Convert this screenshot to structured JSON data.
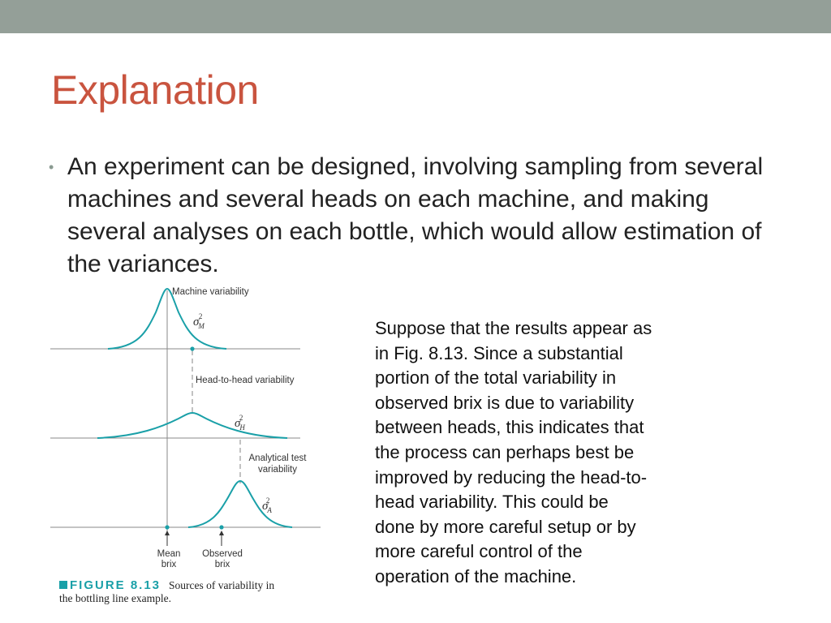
{
  "slide": {
    "title": "Explanation",
    "bullet": "An experiment can be designed, involving sampling from several machines and several heads on each machine, and making several analyses on each bottle, which would allow estimation of the variances.",
    "side_text_lines": [
      "Suppose that the results appear as",
      "in Fig. 8.13. Since a substantial",
      "portion of the total variability in",
      "observed brix is due to variability",
      "between heads, this indicates that",
      "the process can perhaps best be",
      "improved by reducing the head-to-",
      "head variability. This could be",
      "done by more careful setup or by",
      "more careful control of the",
      "operation of the machine."
    ]
  },
  "figure": {
    "labels": {
      "machine": "Machine variability",
      "sigma_m": "σ",
      "sigma_m_sub": "M",
      "head": "Head-to-head variability",
      "sigma_h": "σ",
      "sigma_h_sub": "H",
      "analytical_1": "Analytical test",
      "analytical_2": "variability",
      "sigma_a": "σ",
      "sigma_a_sub": "A",
      "sup": "2",
      "mean_1": "Mean",
      "mean_2": "brix",
      "observed_1": "Observed",
      "observed_2": "brix"
    },
    "caption_label": "FIGURE 8.13",
    "caption_text_1": "Sources of variability in",
    "caption_text_2": "the bottling line example.",
    "colors": {
      "curve": "#1aa0a8",
      "title": "#c9543f",
      "top_bar": "#949f98"
    }
  }
}
